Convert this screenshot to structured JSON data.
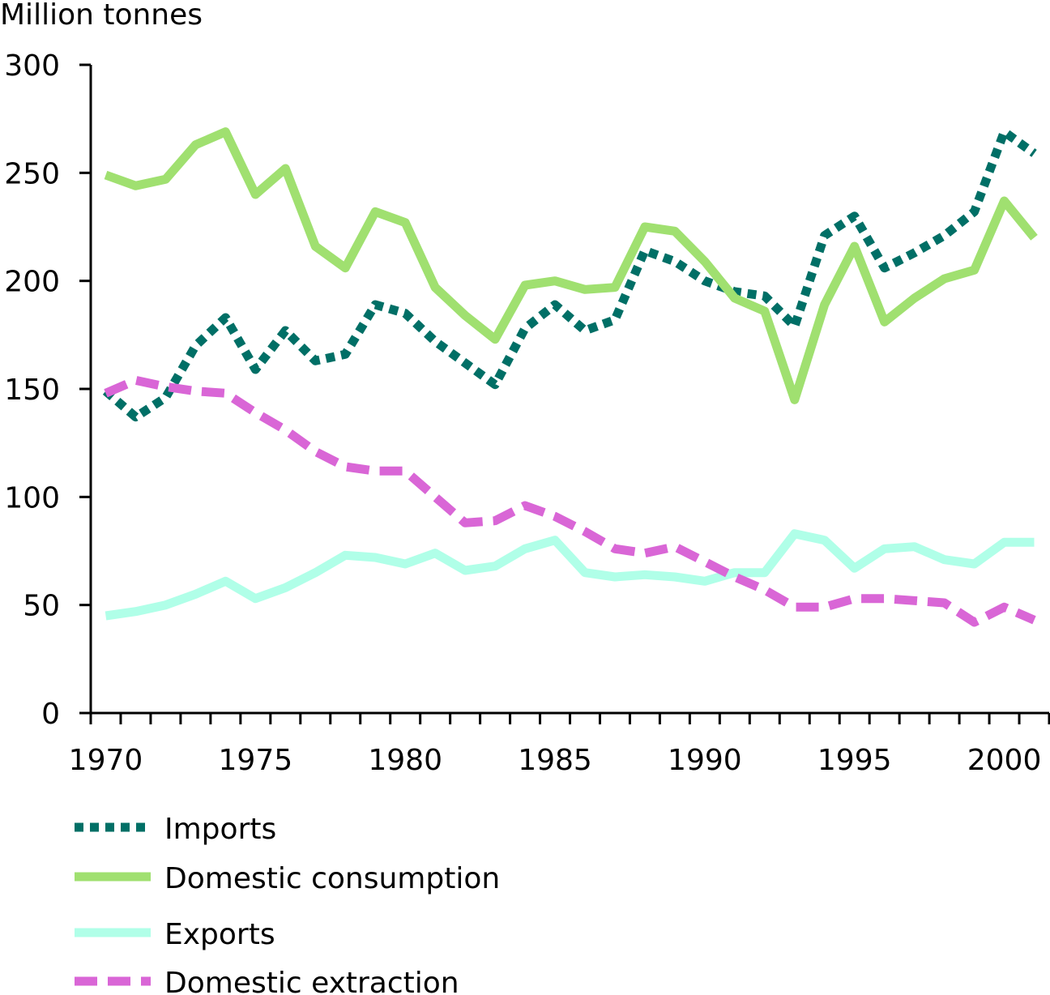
{
  "chart_data": {
    "type": "line",
    "ylabel": "Million tonnes",
    "xlabel": "",
    "title": "",
    "ylim": [
      0,
      300
    ],
    "xlim": [
      1970,
      2001
    ],
    "y_ticks": [
      0,
      50,
      100,
      150,
      200,
      250,
      300
    ],
    "x_tick_labels": [
      1970,
      1975,
      1980,
      1985,
      1990,
      1995,
      2000
    ],
    "grid": false,
    "legend_position": "bottom-left",
    "x": [
      1970,
      1971,
      1972,
      1973,
      1974,
      1975,
      1976,
      1977,
      1978,
      1979,
      1980,
      1981,
      1982,
      1983,
      1984,
      1985,
      1986,
      1987,
      1988,
      1989,
      1990,
      1991,
      1992,
      1993,
      1994,
      1995,
      1996,
      1997,
      1998,
      1999,
      2000,
      2001
    ],
    "series": [
      {
        "name": "Imports",
        "color": "#006f66",
        "style": "dotted",
        "values": [
          149,
          137,
          146,
          170,
          183,
          159,
          177,
          163,
          166,
          189,
          185,
          172,
          162,
          152,
          178,
          189,
          177,
          182,
          214,
          209,
          200,
          195,
          193,
          179,
          221,
          230,
          206,
          213,
          221,
          232,
          269,
          259
        ]
      },
      {
        "name": "Domestic consumption",
        "color": "#a0e070",
        "style": "solid",
        "values": [
          249,
          244,
          247,
          263,
          269,
          240,
          252,
          216,
          206,
          232,
          227,
          197,
          184,
          173,
          198,
          200,
          196,
          197,
          225,
          223,
          209,
          192,
          186,
          145,
          189,
          216,
          181,
          192,
          201,
          205,
          237,
          220
        ]
      },
      {
        "name": "Exports",
        "color": "#b0ffe8",
        "style": "solid",
        "values": [
          45,
          47,
          50,
          55,
          61,
          53,
          58,
          65,
          73,
          72,
          69,
          74,
          66,
          68,
          76,
          80,
          65,
          63,
          64,
          63,
          61,
          65,
          65,
          83,
          80,
          67,
          76,
          77,
          71,
          69,
          79,
          79
        ]
      },
      {
        "name": "Domestic extraction",
        "color": "#d966d6",
        "style": "dashed",
        "values": [
          148,
          154,
          151,
          149,
          148,
          139,
          131,
          121,
          114,
          112,
          112,
          100,
          88,
          89,
          96,
          91,
          84,
          76,
          74,
          77,
          70,
          63,
          57,
          49,
          49,
          53,
          53,
          52,
          51,
          42,
          49,
          43
        ]
      }
    ]
  }
}
